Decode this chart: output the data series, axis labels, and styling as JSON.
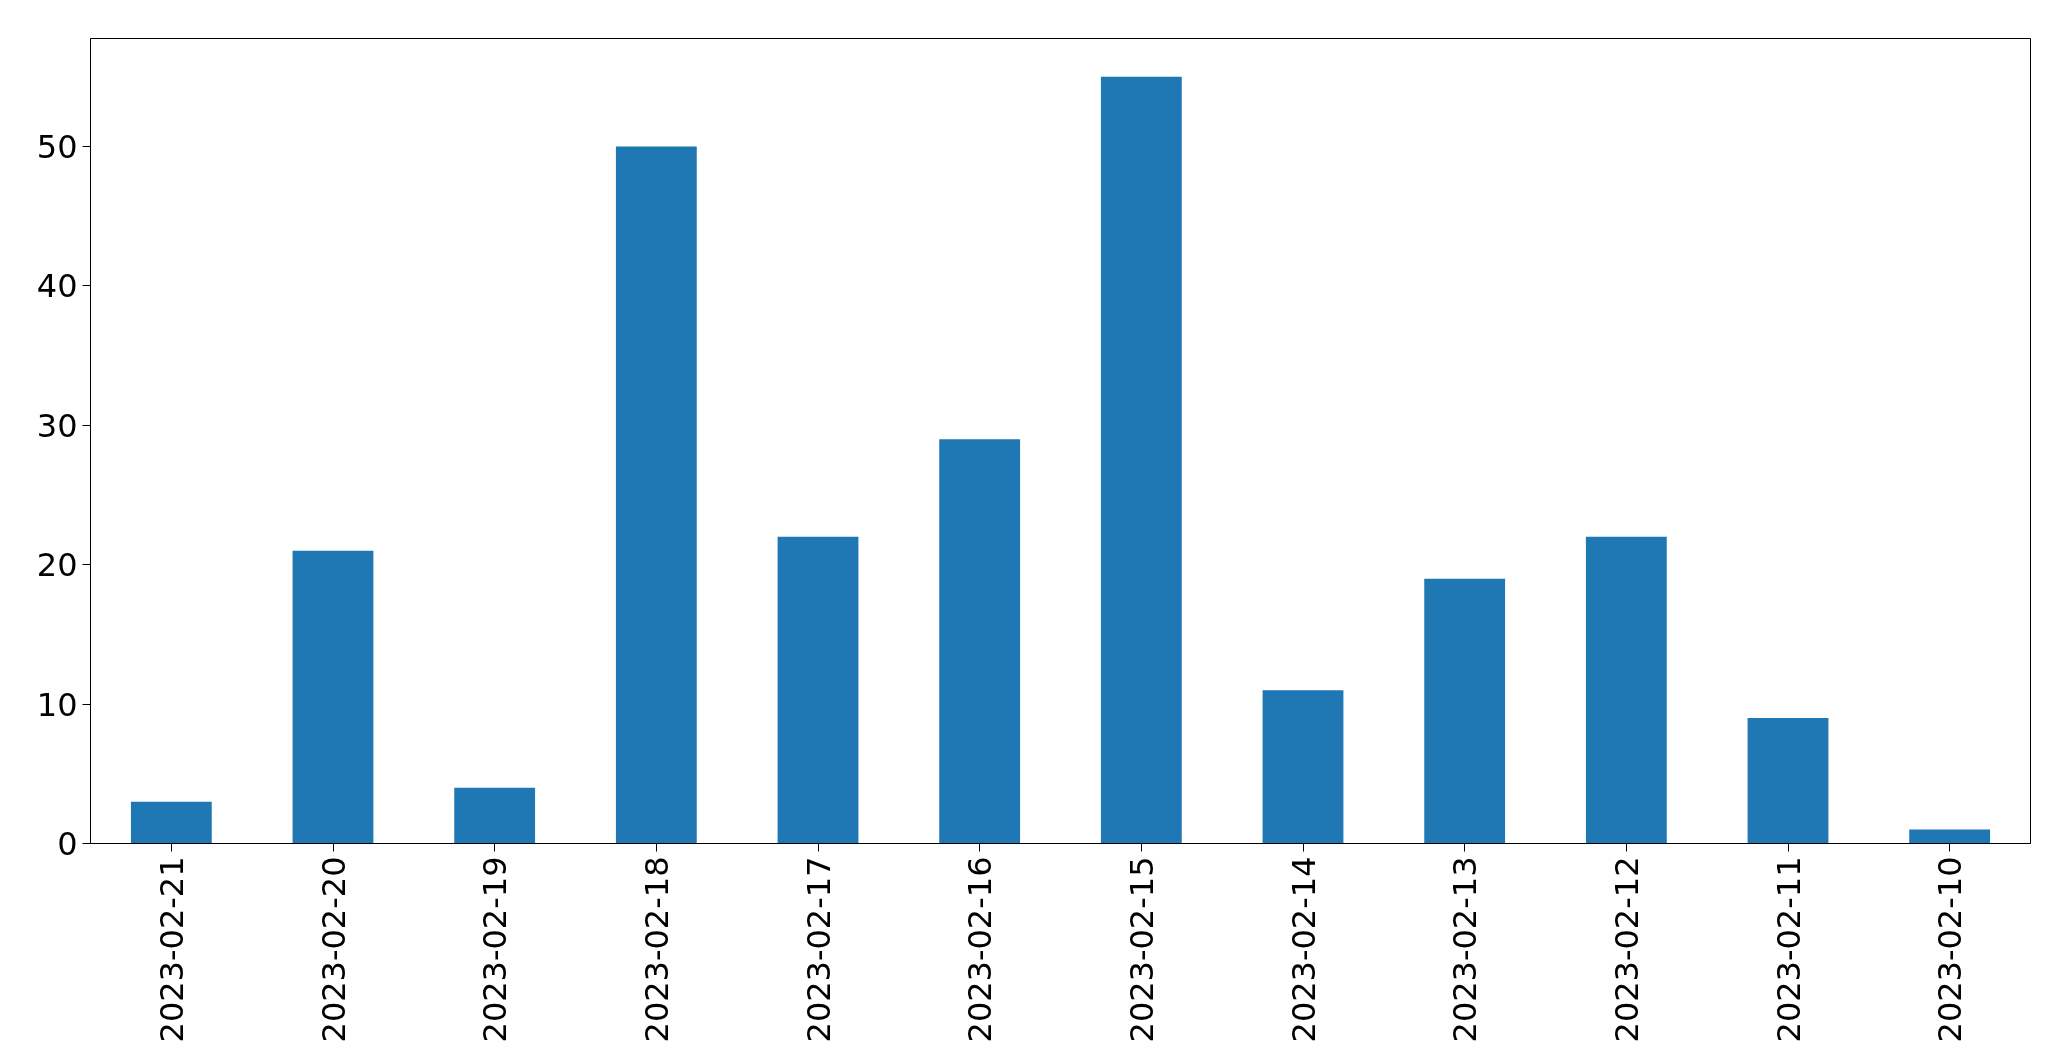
{
  "chart_data": {
    "type": "bar",
    "categories": [
      "2023-02-21",
      "2023-02-20",
      "2023-02-19",
      "2023-02-18",
      "2023-02-17",
      "2023-02-16",
      "2023-02-15",
      "2023-02-14",
      "2023-02-13",
      "2023-02-12",
      "2023-02-11",
      "2023-02-10"
    ],
    "values": [
      3,
      21,
      4,
      50,
      22,
      29,
      55,
      11,
      19,
      22,
      9,
      1
    ],
    "color": "#1f77b4",
    "ylim": [
      0,
      57.75
    ],
    "yticks": [
      0,
      10,
      20,
      30,
      40,
      50
    ],
    "grid": false
  }
}
